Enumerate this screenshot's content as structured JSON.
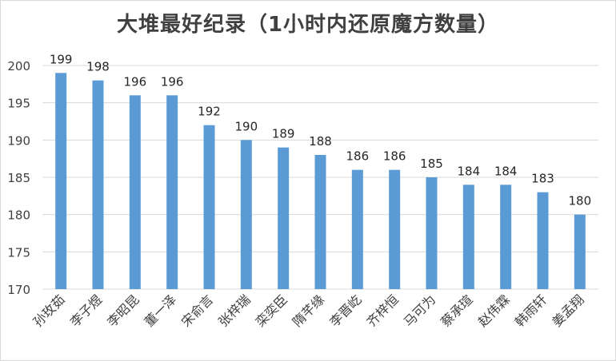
{
  "chart_data": {
    "type": "bar",
    "title": "大堆最好纪录（1小时内还原魔方数量）",
    "xlabel": "",
    "ylabel": "",
    "categories": [
      "孙玫茹",
      "李子煜",
      "李昭昆",
      "董一泽",
      "宋俞言",
      "张梓瑞",
      "栾奕臣",
      "隋芊缘",
      "李晋屹",
      "齐梓恒",
      "马可为",
      "蔡承瑄",
      "赵伟霖",
      "韩雨轩",
      "姜孟翔"
    ],
    "values": [
      199,
      198,
      196,
      196,
      192,
      190,
      189,
      188,
      186,
      186,
      185,
      184,
      184,
      183,
      180
    ],
    "ylim": [
      170,
      200
    ],
    "yticks": [
      170,
      175,
      180,
      185,
      190,
      195,
      200
    ],
    "grid": true,
    "legend": "none",
    "colors": {
      "bar": "#5b9bd5",
      "grid": "#d9d9d9",
      "axis_text": "#404040",
      "label_text": "#262626"
    }
  }
}
